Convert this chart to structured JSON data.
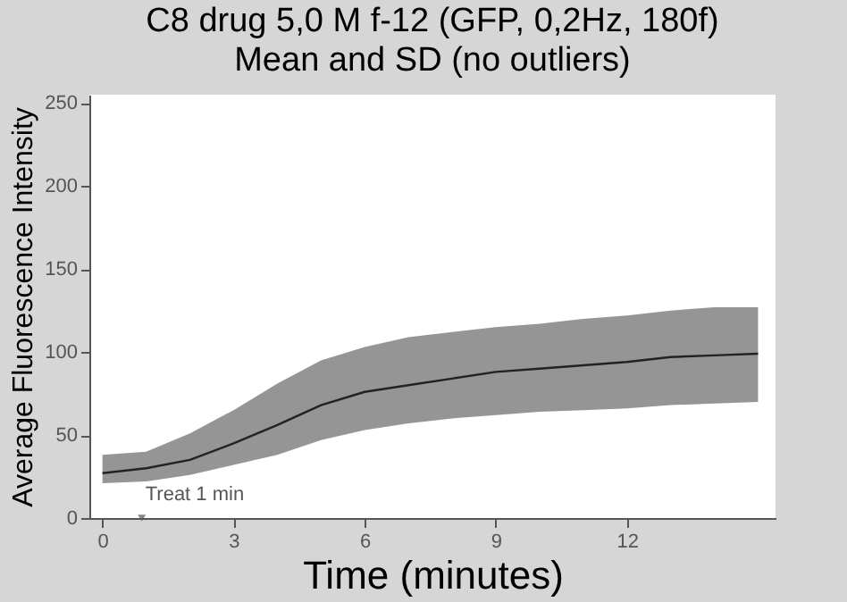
{
  "chart_data": {
    "type": "line",
    "title": "C8 drug 5,0 M f-12 (GFP, 0,2Hz, 180f)",
    "subtitle": "Mean and SD (no outliers)",
    "xlabel": "Time (minutes)",
    "ylabel": "Average Fluorescence Intensity",
    "x": [
      0,
      1,
      2,
      3,
      4,
      5,
      6,
      7,
      8,
      9,
      10,
      11,
      12,
      13,
      14,
      15
    ],
    "series": [
      {
        "color": "#222222",
        "values": [
          27,
          30,
          35,
          45,
          56,
          68,
          76,
          80,
          84,
          88,
          90,
          92,
          94,
          97,
          98,
          99
        ],
        "lower": [
          21,
          22,
          26,
          32,
          38,
          47,
          53,
          57,
          60,
          62,
          64,
          65,
          66,
          68,
          69,
          70
        ],
        "upper": [
          38,
          40,
          51,
          65,
          81,
          95,
          103,
          109,
          112,
          115,
          117,
          120,
          122,
          125,
          127,
          127
        ]
      }
    ],
    "xlim": [
      -0.3,
      15.4
    ],
    "xticks": [
      0,
      3,
      6,
      9,
      12
    ],
    "ylim": [
      0,
      255
    ],
    "yticks": [
      0,
      50,
      100,
      150,
      200,
      250
    ],
    "annotations": [
      {
        "text": "Treat 1 min",
        "x": 0.9,
        "y": 0
      }
    ],
    "grid": false,
    "marker": "none",
    "line_style": "solid"
  }
}
